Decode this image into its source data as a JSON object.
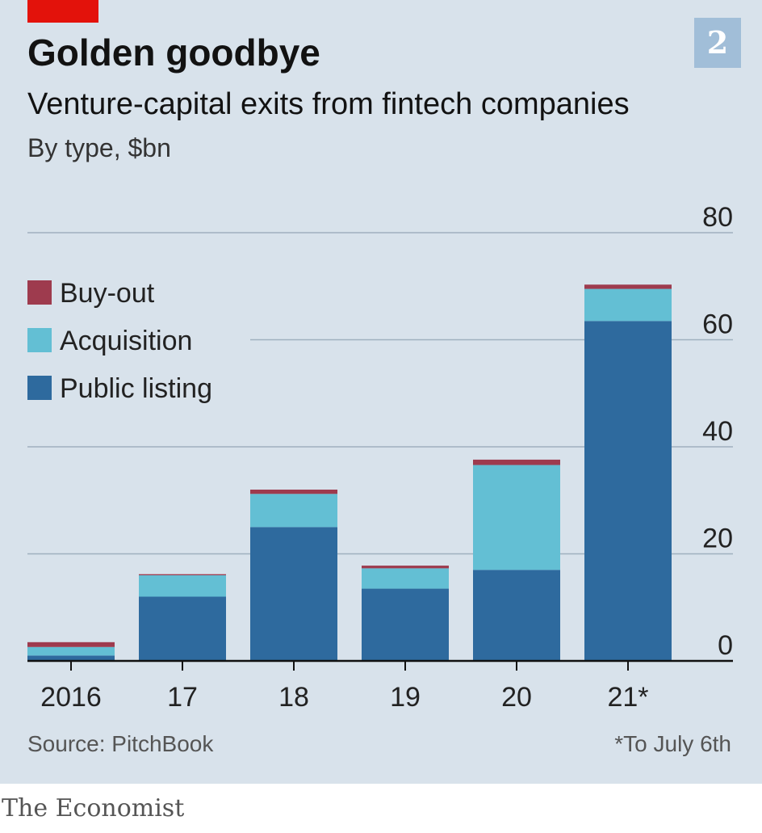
{
  "header": {
    "title": "Golden goodbye",
    "subtitle": "Venture-capital exits from fintech companies",
    "units": "By type, $bn",
    "badge": "2"
  },
  "footer": {
    "source": "Source: PitchBook",
    "footnote": "*To July 6th",
    "publisher": "The Economist"
  },
  "colors": {
    "accent": "#e3120b",
    "background": "#d8e2eb",
    "gridline": "#9fb0bf"
  },
  "chart_data": {
    "type": "bar",
    "stacked": true,
    "categories": [
      "2016",
      "17",
      "18",
      "19",
      "20",
      "21*"
    ],
    "series": [
      {
        "name": "Public listing",
        "color": "#2e6a9e",
        "values": [
          1,
          12,
          25,
          13.5,
          17,
          63.5
        ]
      },
      {
        "name": "Acquisition",
        "color": "#63bfd4",
        "values": [
          1.6,
          4,
          6.2,
          3.8,
          19.6,
          6
        ]
      },
      {
        "name": "Buy-out",
        "color": "#9e3b4e",
        "values": [
          0.9,
          0.2,
          0.8,
          0.5,
          1,
          0.8
        ]
      }
    ],
    "legend_order": [
      "Buy-out",
      "Acquisition",
      "Public listing"
    ],
    "legend_position": "top-left",
    "yticks": [
      0,
      20,
      40,
      60,
      80
    ],
    "ylim": [
      0,
      80
    ],
    "yaxis_side": "right",
    "grid": true
  }
}
